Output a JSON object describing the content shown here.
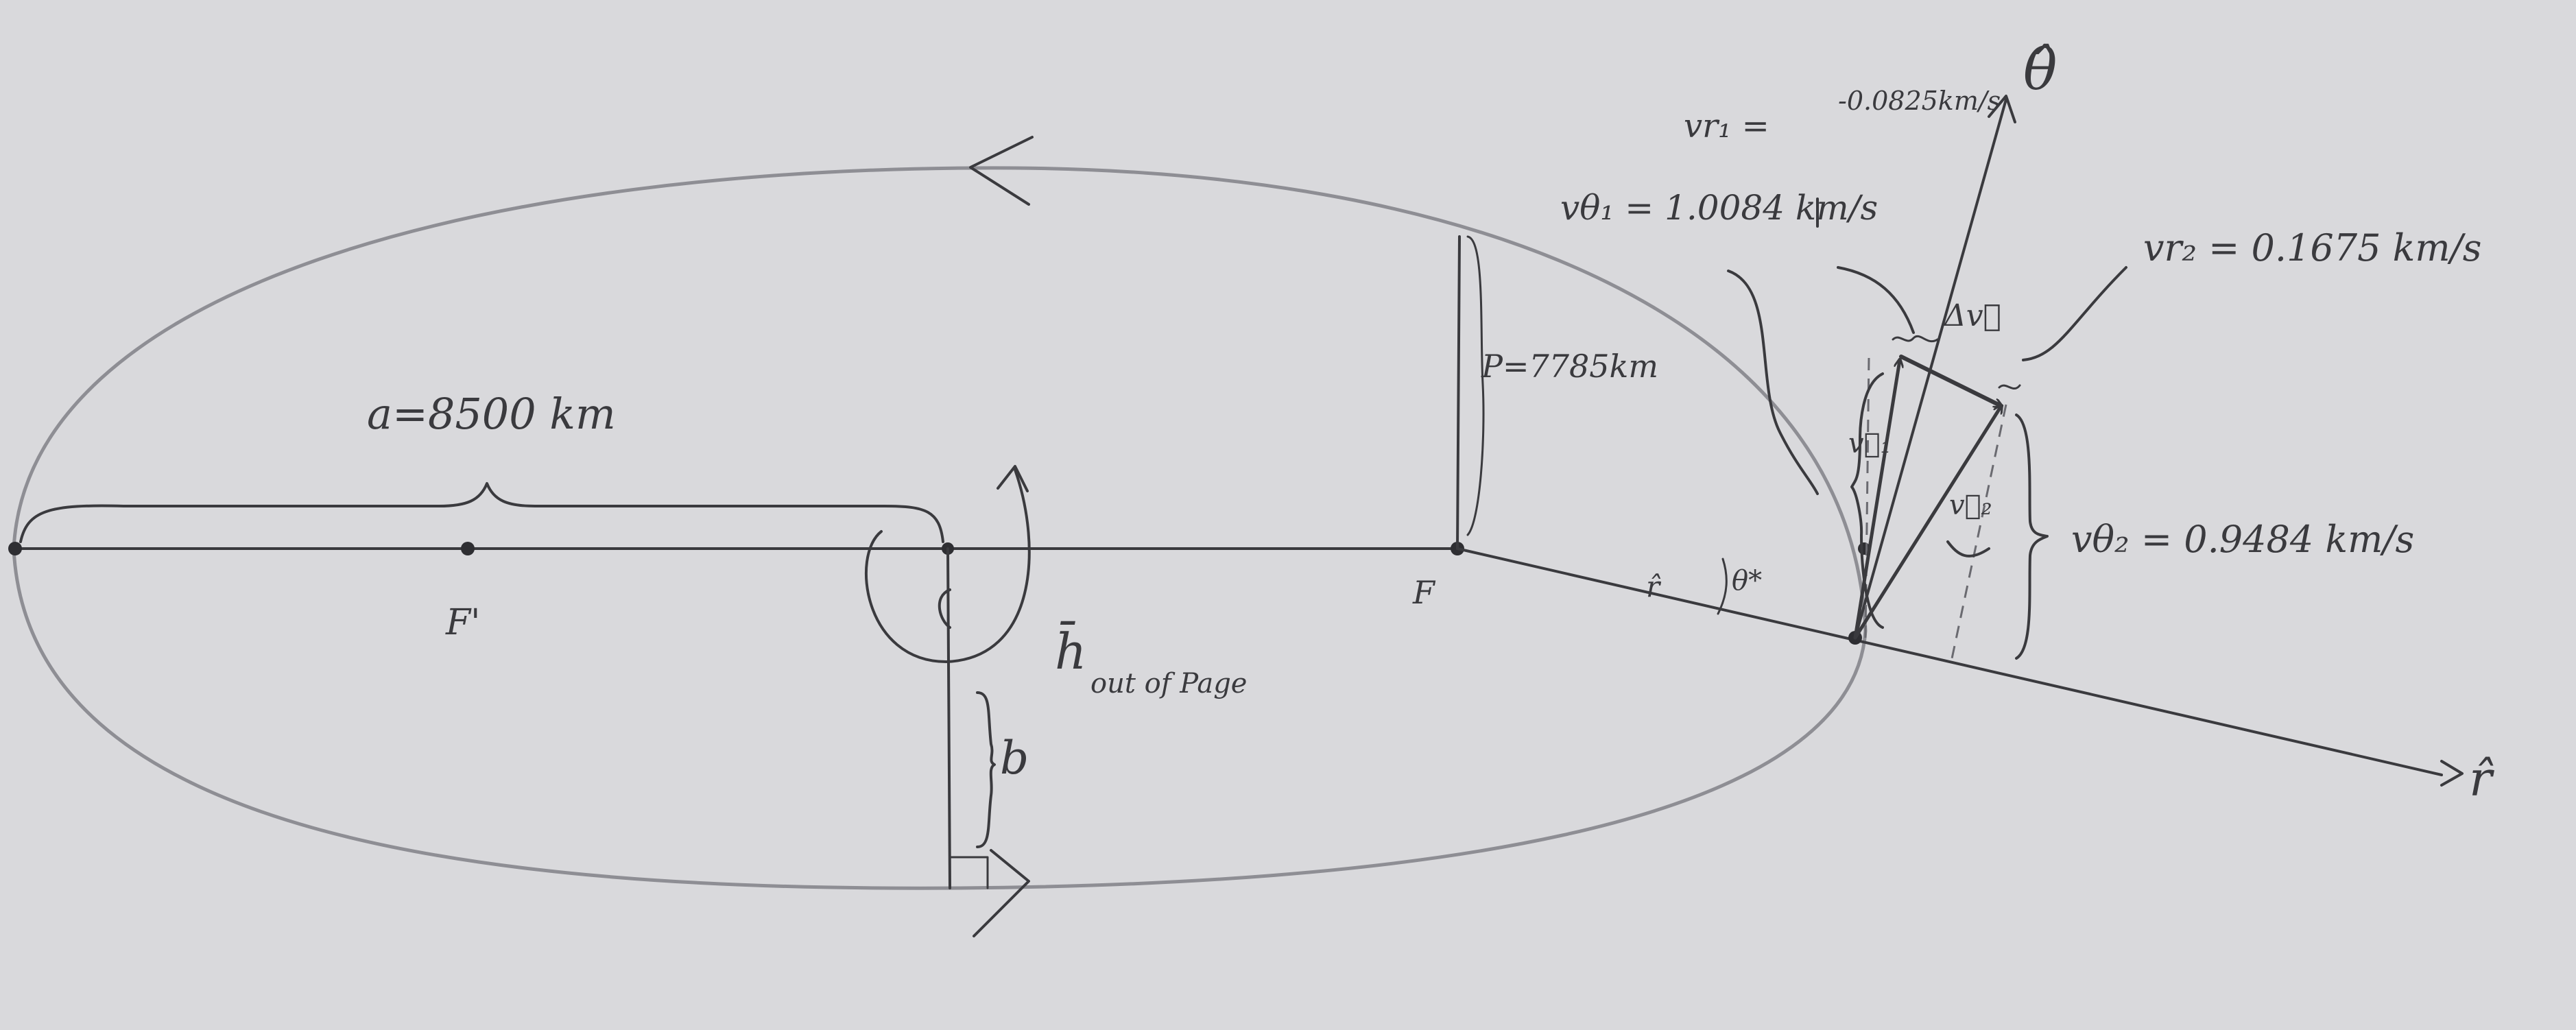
{
  "labels": {
    "semi_major": "a=8500 km",
    "focus_empty": "F'",
    "focus": "F",
    "semi_latus": "P=7785km",
    "h_vector": "h̄",
    "h_note": "out of Page",
    "semi_minor": "b",
    "r_hat_axis": "r̂",
    "theta_hat_axis": "θ̂",
    "r_hat_small": "r̂",
    "theta_star": "θ*",
    "delta_v": "Δv⃗",
    "v1_vec": "v⃗₁",
    "v2_vec": "v⃗₂",
    "v_r1_label": "vr₁ =",
    "v_r1_value": "-0.0825km/s",
    "v_theta1": "vθ₁ = 1.0084 km/s",
    "v_r2": "vr₂ = 0.1675 km/s",
    "v_theta2": "vθ₂ = 0.9484 km/s"
  }
}
